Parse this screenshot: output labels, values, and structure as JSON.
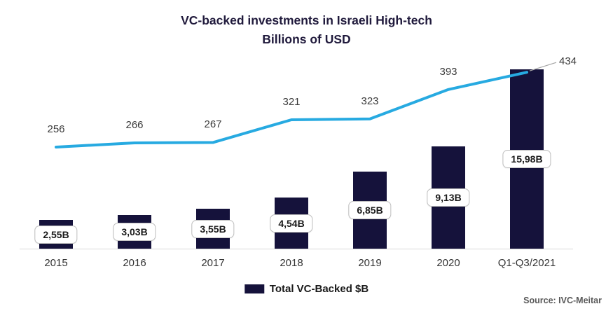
{
  "title": {
    "line1": "VC-backed investments in Israeli High-tech",
    "line2": "Billions of USD"
  },
  "legend": {
    "label": "Total VC-Backed $B"
  },
  "source": "Source: IVC-Meitar",
  "colors": {
    "bar": "#15123b",
    "line": "#27aae1",
    "title": "#201a3c",
    "axis": "#d9d9d9",
    "leader": "#a6a6a6",
    "label_box_border": "#bfbfbf"
  },
  "chart_data": {
    "type": "combo",
    "title": "VC-backed investments in Israeli High-tech",
    "subtitle": "Billions of USD",
    "categories": [
      "2015",
      "2016",
      "2017",
      "2018",
      "2019",
      "2020",
      "Q1-Q3/2021"
    ],
    "series": [
      {
        "name": "Total VC-Backed $B",
        "type": "bar",
        "values": [
          2.55,
          3.03,
          3.55,
          4.54,
          6.85,
          9.13,
          15.98
        ],
        "labels": [
          "2,55B",
          "3,03B",
          "3,55B",
          "4,54B",
          "6,85B",
          "9,13B",
          "15,98B"
        ]
      },
      {
        "name": "",
        "type": "line",
        "values": [
          256,
          266,
          267,
          321,
          323,
          393,
          434
        ],
        "labels": [
          "256",
          "266",
          "267",
          "321",
          "323",
          "393",
          "434"
        ]
      }
    ],
    "legend_position": "bottom",
    "grid": false,
    "bar_axis_range": [
      0,
      16.5
    ],
    "line_axis_range": [
      0,
      450
    ]
  }
}
